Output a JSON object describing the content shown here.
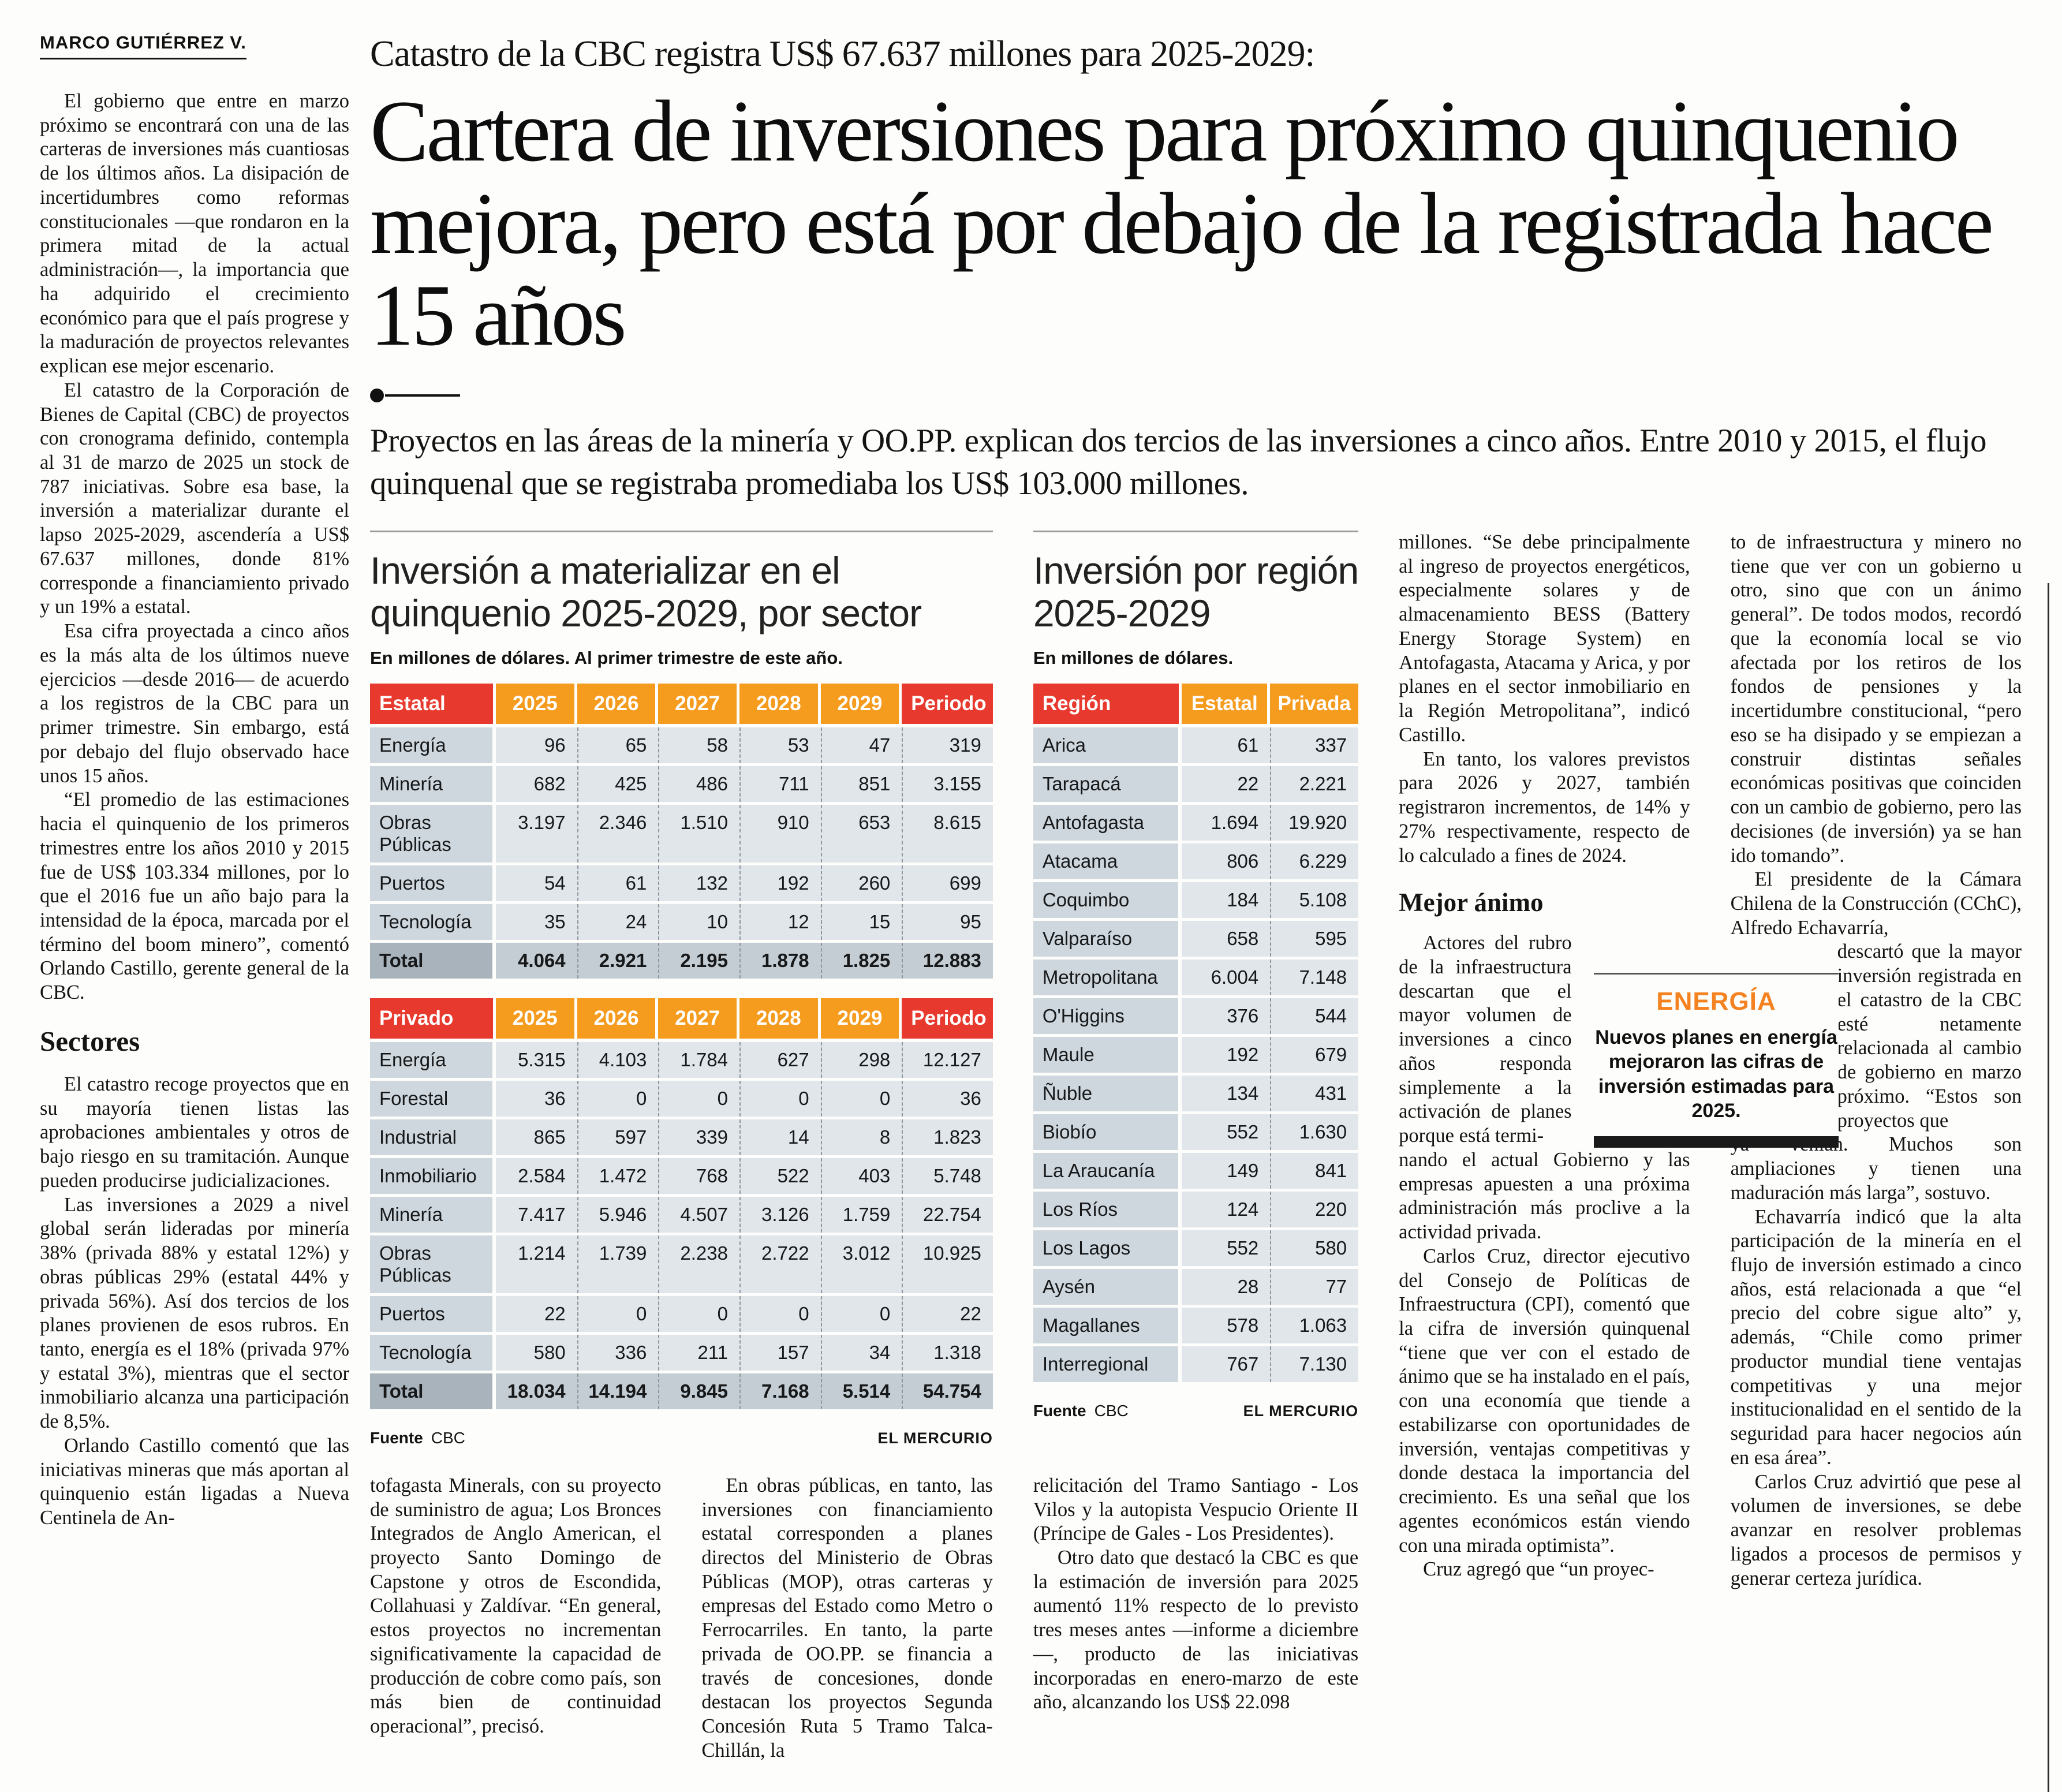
{
  "byline": "MARCO GUTIÉRREZ V.",
  "header": {
    "eyebrow": "Catastro de la CBC registra US$ 67.637 millones para 2025-2029:",
    "headline": "Cartera de inversiones para próximo quinquenio mejora, pero está por debajo de la registrada hace 15 años",
    "deck": "Proyectos en las áreas de la minería y OO.PP. explican dos tercios de las inversiones a cinco años. Entre 2010 y 2015, el flujo quinquenal que se registraba promediaba los US$ 103.000 millones."
  },
  "left_column": {
    "paras_top": [
      "El gobierno que entre en marzo próximo se encontrará con una de las carteras de inversiones más cuantiosas de los últimos años. La disipación de incertidumbres como reformas constitucionales —que rondaron en la primera mitad de la actual administración—, la importancia que ha adquirido el crecimiento económico para que el país progrese y la maduración de proyectos relevantes explican ese mejor escenario.",
      "El catastro de la Corporación de Bienes de Capital (CBC) de proyectos con cronograma definido, contempla al 31 de marzo de 2025 un stock de 787 iniciativas. Sobre esa base, la inversión a materializar durante el lapso 2025-2029, ascendería a US$ 67.637 millones, donde 81% corresponde a financiamiento privado y un 19% a estatal.",
      "Esa cifra proyectada a cinco años es la más alta de los últimos nueve ejercicios —desde 2016— de acuerdo a los registros de la CBC para un primer trimestre. Sin embargo, está por debajo del flujo observado hace unos 15 años.",
      "“El promedio de las estimaciones hacia el quinquenio de los primeros trimestres entre los años 2010 y 2015 fue de US$ 103.334 millones, por lo que el 2016 fue un año bajo para la intensidad de la época, marcada por el término del boom minero”, comentó Orlando Castillo, gerente general de la CBC."
    ],
    "subhead": "Sectores",
    "paras_bottom": [
      "El catastro recoge proyectos que en su mayoría tienen listas las aprobaciones ambientales y otros de bajo riesgo en su tramitación. Aunque pueden producirse judicializaciones.",
      "Las inversiones a 2029 a nivel global serán lideradas por minería 38% (privada 88% y estatal 12%) y obras públicas 29% (estatal 44% y privada 56%). Así dos tercios de los planes provienen de esos rubros. En tanto, energía es el 18% (privada 97% y estatal 3%), mientras que el sector inmobiliario alcanza una participación de 8,5%.",
      "Orlando Castillo comentó que las iniciativas mineras que más aportan al quinquenio están ligadas a Nueva Centinela de An-"
    ]
  },
  "chart_data": [
    {
      "type": "table",
      "name": "sector-estatal",
      "title": "Inversión a materializar en el quinquenio 2025-2029, por sector",
      "subtitle": "En millones de dólares. Al primer trimestre de este año.",
      "header": [
        "Estatal",
        "2025",
        "2026",
        "2027",
        "2028",
        "2029",
        "Periodo"
      ],
      "rows": [
        [
          "Energía",
          "96",
          "65",
          "58",
          "53",
          "47",
          "319"
        ],
        [
          "Minería",
          "682",
          "425",
          "486",
          "711",
          "851",
          "3.155"
        ],
        [
          "Obras Públicas",
          "3.197",
          "2.346",
          "1.510",
          "910",
          "653",
          "8.615"
        ],
        [
          "Puertos",
          "54",
          "61",
          "132",
          "192",
          "260",
          "699"
        ],
        [
          "Tecnología",
          "35",
          "24",
          "10",
          "12",
          "15",
          "95"
        ]
      ],
      "total": [
        "Total",
        "4.064",
        "2.921",
        "2.195",
        "1.878",
        "1.825",
        "12.883"
      ]
    },
    {
      "type": "table",
      "name": "sector-privado",
      "header": [
        "Privado",
        "2025",
        "2026",
        "2027",
        "2028",
        "2029",
        "Periodo"
      ],
      "rows": [
        [
          "Energía",
          "5.315",
          "4.103",
          "1.784",
          "627",
          "298",
          "12.127"
        ],
        [
          "Forestal",
          "36",
          "0",
          "0",
          "0",
          "0",
          "36"
        ],
        [
          "Industrial",
          "865",
          "597",
          "339",
          "14",
          "8",
          "1.823"
        ],
        [
          "Inmobiliario",
          "2.584",
          "1.472",
          "768",
          "522",
          "403",
          "5.748"
        ],
        [
          "Minería",
          "7.417",
          "5.946",
          "4.507",
          "3.126",
          "1.759",
          "22.754"
        ],
        [
          "Obras Públicas",
          "1.214",
          "1.739",
          "2.238",
          "2.722",
          "3.012",
          "10.925"
        ],
        [
          "Puertos",
          "22",
          "0",
          "0",
          "0",
          "0",
          "22"
        ],
        [
          "Tecnología",
          "580",
          "336",
          "211",
          "157",
          "34",
          "1.318"
        ]
      ],
      "total": [
        "Total",
        "18.034",
        "14.194",
        "9.845",
        "7.168",
        "5.514",
        "54.754"
      ],
      "source_label": "Fuente",
      "source": "CBC",
      "credit": "EL MERCURIO"
    },
    {
      "type": "table",
      "name": "region",
      "title": "Inversión por región 2025-2029",
      "title_line1": "Inversión por región",
      "title_line2": "2025-2029",
      "subtitle": "En millones de dólares.",
      "header": [
        "Región",
        "Estatal",
        "Privada"
      ],
      "rows": [
        [
          "Arica",
          "61",
          "337"
        ],
        [
          "Tarapacá",
          "22",
          "2.221"
        ],
        [
          "Antofagasta",
          "1.694",
          "19.920"
        ],
        [
          "Atacama",
          "806",
          "6.229"
        ],
        [
          "Coquimbo",
          "184",
          "5.108"
        ],
        [
          "Valparaíso",
          "658",
          "595"
        ],
        [
          "Metropolitana",
          "6.004",
          "7.148"
        ],
        [
          "O'Higgins",
          "376",
          "544"
        ],
        [
          "Maule",
          "192",
          "679"
        ],
        [
          "Ñuble",
          "134",
          "431"
        ],
        [
          "Biobío",
          "552",
          "1.630"
        ],
        [
          "La Araucanía",
          "149",
          "841"
        ],
        [
          "Los Ríos",
          "124",
          "220"
        ],
        [
          "Los Lagos",
          "552",
          "580"
        ],
        [
          "Aysén",
          "28",
          "77"
        ],
        [
          "Magallanes",
          "578",
          "1.063"
        ],
        [
          "Interregional",
          "767",
          "7.130"
        ]
      ],
      "source_label": "Fuente",
      "source": "CBC",
      "credit": "EL MERCURIO"
    }
  ],
  "continuations": {
    "bottom1": "tofagasta Minerals, con su proyecto de suministro de agua; Los Bronces Integrados de Anglo American, el proyecto Santo Domingo de Capstone y otros de Escondida, Collahuasi y Zaldívar. “En general, estos proyectos no incrementan significativamente la capacidad de producción de cobre como país, son más bien de continuidad operacional”, precisó.",
    "bottom2": "En obras públicas, en tanto, las inversiones con financiamiento estatal corresponden a planes directos del Ministerio de Obras Públicas (MOP), otras carteras y empresas del Estado como Metro o Ferrocarriles. En tanto, la parte privada de OO.PP. se financia a través de concesiones, donde destacan los proyectos Segunda Concesión Ruta 5 Tramo Talca-Chillán, la",
    "bottom3a": "relicitación del Tramo Santiago - Los Vilos y la autopista Vespucio Oriente II (Príncipe de Gales - Los Presidentes).",
    "bottom3b": "Otro dato que destacó la CBC es que la estimación de inversión para 2025 aumentó 11% respecto de lo previsto tres meses antes —informe a diciembre—, producto de las iniciativas incorporadas en enero-marzo de este año, alcanzando los US$ 22.098"
  },
  "col4": {
    "p1": "millones. “Se debe principalmente al ingreso de proyectos energéticos, especialmente solares y de almacenamiento BESS (Battery Energy Storage System) en Antofagasta, Atacama y Arica, y por planes en el sector inmobiliario en la Región Metropolitana”, indicó Castillo.",
    "p2": "En tanto, los valores previstos para 2026 y 2027, también registraron incrementos, de 14% y 27% respectivamente, respecto de lo calculado a fines de 2024.",
    "subhead": "Mejor ánimo",
    "p3": "Actores del rubro de la infraestructura descartan que el mayor volumen de inversiones a cinco años responda simplemente a la activación de planes porque está termi-",
    "p4": "nando el actual Gobierno y las empresas apuesten a una próxima administración más proclive a la actividad privada.",
    "p5": "Carlos Cruz, director ejecutivo del Consejo de Políticas de Infraestructura (CPI), comentó que la cifra de inversión quinquenal “tiene que ver con el estado de ánimo que se ha instalado en el país, con una economía que tiende a estabilizarse con oportunidades de inversión, ventajas competitivas y donde destaca la importancia del crecimiento. Es una señal que los agentes económicos están viendo con una mirada optimista”.",
    "p6": "Cruz agregó que “un proyec-"
  },
  "col5": {
    "p1": "to de infraestructura y minero no tiene que ver con un gobierno u otro, sino que con un ánimo general”. De todos modos, recordó que la economía local se vio afectada por los retiros de los fondos de pensiones y la incertidumbre constitucional, “pero eso se ha disipado y se empiezan a construir distintas señales económicas positivas que coinciden con un cambio de gobierno, pero las decisiones (de inversión) ya se han ido tomando”.",
    "p2": "El presidente de la Cámara Chilena de la Construcción (CChC), Alfredo Echavarría,",
    "p3": "descartó que la mayor inversión registrada en el catastro de la CBC esté netamente relacionada al cambio de gobierno en marzo próximo. “Estos son proyectos que",
    "p4": "ya venían. Muchos son ampliaciones y tienen una maduración más larga”, sostuvo.",
    "p5": "Echavarría indicó que la alta participación de la minería en el flujo de inversión estimado a cinco años, está relacionada a que “el precio del cobre sigue alto” y, además, “Chile como primer productor mundial tiene ventajas competitivas y una mejor institucionalidad en el sentido de la seguridad para hacer negocios aún en esa área”.",
    "p6": "Carlos Cruz advirtió que pese al volumen de inversiones, se debe avanzar en resolver problemas ligados a procesos de permisos y generar certeza jurídica."
  },
  "energia_box": {
    "kicker": "ENERGÍA",
    "text": "Nuevos planes en energía mejoraron las cifras de inversión estimadas para 2025."
  },
  "colors": {
    "accent_red": "#e8392e",
    "accent_orange": "#f59b1e",
    "kicker_orange": "#f58220",
    "row_bg": "#e0e6ea",
    "label_bg": "#ced7dd",
    "total_bg": "#c4cdd3"
  }
}
